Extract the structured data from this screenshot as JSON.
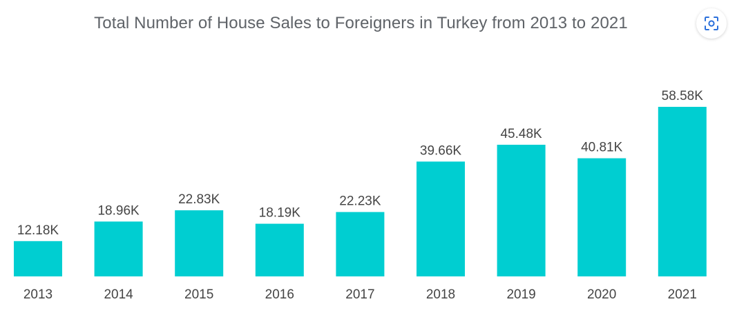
{
  "chart_data": {
    "type": "bar",
    "title": "Total Number of House Sales to Foreigners in Turkey from 2013 to 2021",
    "xlabel": "",
    "ylabel": "",
    "categories": [
      "2013",
      "2014",
      "2015",
      "2016",
      "2017",
      "2018",
      "2019",
      "2020",
      "2021"
    ],
    "values": [
      12.18,
      18.96,
      22.83,
      18.19,
      22.23,
      39.66,
      45.48,
      40.81,
      58.58
    ],
    "value_labels": [
      "12.18K",
      "18.96K",
      "22.83K",
      "18.19K",
      "22.23K",
      "39.66K",
      "45.48K",
      "40.81K",
      "58.58K"
    ],
    "unit": "K",
    "ylim": [
      0,
      60
    ],
    "grid": false,
    "legend": "none",
    "bar_color": "#00ced1"
  },
  "toolbar": {
    "screenshot_icon": "screenshot-icon",
    "accent_color": "#2a6fdb"
  }
}
